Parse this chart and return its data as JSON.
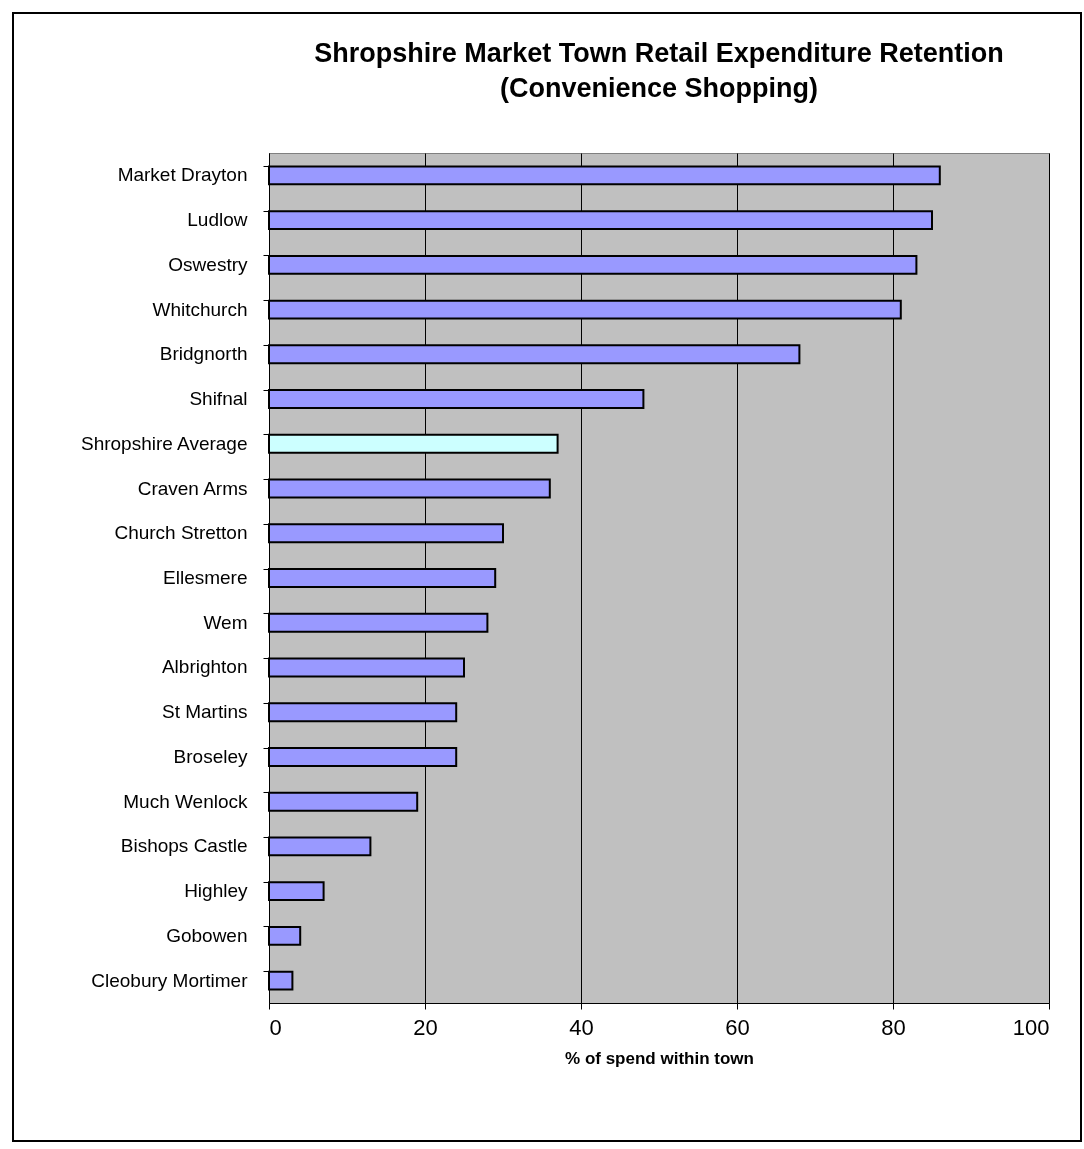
{
  "chart_data": {
    "type": "bar",
    "orientation": "horizontal",
    "title": "Shropshire Market Town Retail Expenditure Retention",
    "subtitle": "(Convenience Shopping)",
    "xlabel": "% of spend within town",
    "categories": [
      "Market Drayton",
      "Ludlow",
      "Oswestry",
      "Whitchurch",
      "Bridgnorth",
      "Shifnal",
      "Shropshire Average",
      "Craven Arms",
      "Church Stretton",
      "Ellesmere",
      "Wem",
      "Albrighton",
      "St Martins",
      "Broseley",
      "Much Wenlock",
      "Bishops Castle",
      "Highley",
      "Gobowen",
      "Cleobury Mortimer"
    ],
    "values": [
      86,
      85,
      83,
      81,
      68,
      48,
      37,
      36,
      30,
      29,
      28,
      25,
      24,
      24,
      19,
      13,
      7,
      4,
      3
    ],
    "colors": [
      "#9999ff",
      "#9999ff",
      "#9999ff",
      "#9999ff",
      "#9999ff",
      "#9999ff",
      "#ccffff",
      "#9999ff",
      "#9999ff",
      "#9999ff",
      "#9999ff",
      "#9999ff",
      "#9999ff",
      "#9999ff",
      "#9999ff",
      "#9999ff",
      "#9999ff",
      "#9999ff",
      "#9999ff"
    ],
    "xlim": [
      0,
      100
    ],
    "xticks": [
      0,
      20,
      40,
      60,
      80,
      100
    ],
    "grid": "x"
  }
}
